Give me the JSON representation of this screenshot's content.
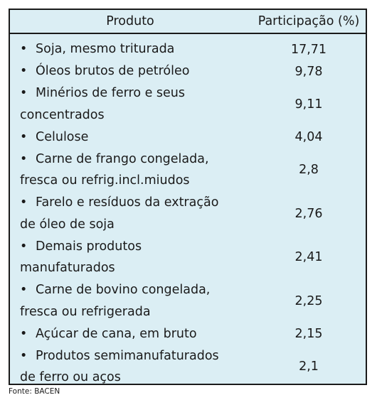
{
  "table": {
    "header": {
      "product": "Produto",
      "share": "Participação (%)"
    },
    "rows": [
      {
        "lines": [
          "Soja, mesmo triturada"
        ],
        "value": "17,71"
      },
      {
        "lines": [
          "Óleos brutos de petróleo"
        ],
        "value": "9,78"
      },
      {
        "lines": [
          "Minérios de ferro e seus",
          "concentrados"
        ],
        "value": "9,11"
      },
      {
        "lines": [
          "Celulose"
        ],
        "value": "4,04"
      },
      {
        "lines": [
          "Carne de frango congelada,",
          "fresca ou refrig.incl.miudos"
        ],
        "value": "2,8"
      },
      {
        "lines": [
          "Farelo e resíduos da extração",
          "de óleo de soja"
        ],
        "value": "2,76"
      },
      {
        "lines": [
          "Demais produtos",
          "manufaturados"
        ],
        "value": "2,41"
      },
      {
        "lines": [
          "Carne de bovino congelada,",
          "fresca ou refrigerada"
        ],
        "value": "2,25"
      },
      {
        "lines": [
          "Açúcar de cana, em bruto"
        ],
        "value": "2,15"
      },
      {
        "lines": [
          "Produtos semimanufaturados",
          "de ferro ou aços"
        ],
        "value": "2,1"
      }
    ]
  },
  "source": "Fonte: BACEN"
}
